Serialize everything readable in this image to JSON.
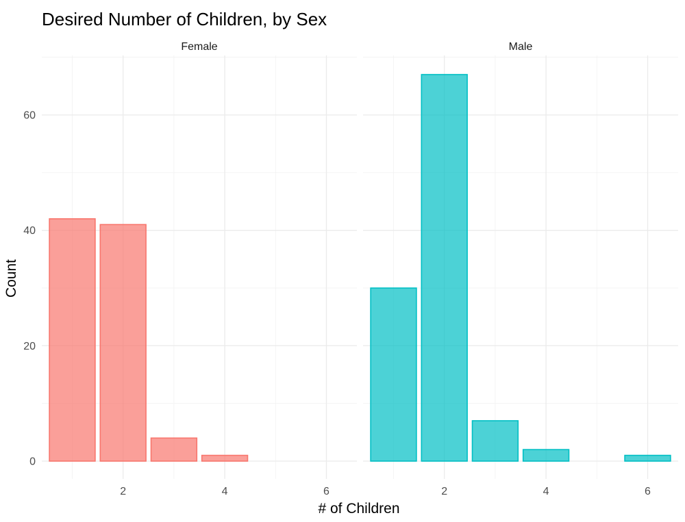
{
  "chart_data": {
    "type": "bar",
    "title": "Desired Number of Children, by Sex",
    "xlabel": "# of Children",
    "ylabel": "Count",
    "xlim": [
      0.4,
      6.6
    ],
    "ylim": [
      0,
      70
    ],
    "x_ticks": [
      2,
      4,
      6
    ],
    "y_ticks": [
      0,
      20,
      40,
      60
    ],
    "grid": true,
    "legend": "none",
    "panels": [
      {
        "name": "Female",
        "color": "#F8766D",
        "bars": [
          {
            "x": 1,
            "y": 42
          },
          {
            "x": 2,
            "y": 41
          },
          {
            "x": 3,
            "y": 4
          },
          {
            "x": 4,
            "y": 1
          }
        ]
      },
      {
        "name": "Male",
        "color": "#00BFC4",
        "bars": [
          {
            "x": 1,
            "y": 30
          },
          {
            "x": 2,
            "y": 67
          },
          {
            "x": 3,
            "y": 7
          },
          {
            "x": 4,
            "y": 2
          },
          {
            "x": 6,
            "y": 1
          }
        ]
      }
    ]
  }
}
